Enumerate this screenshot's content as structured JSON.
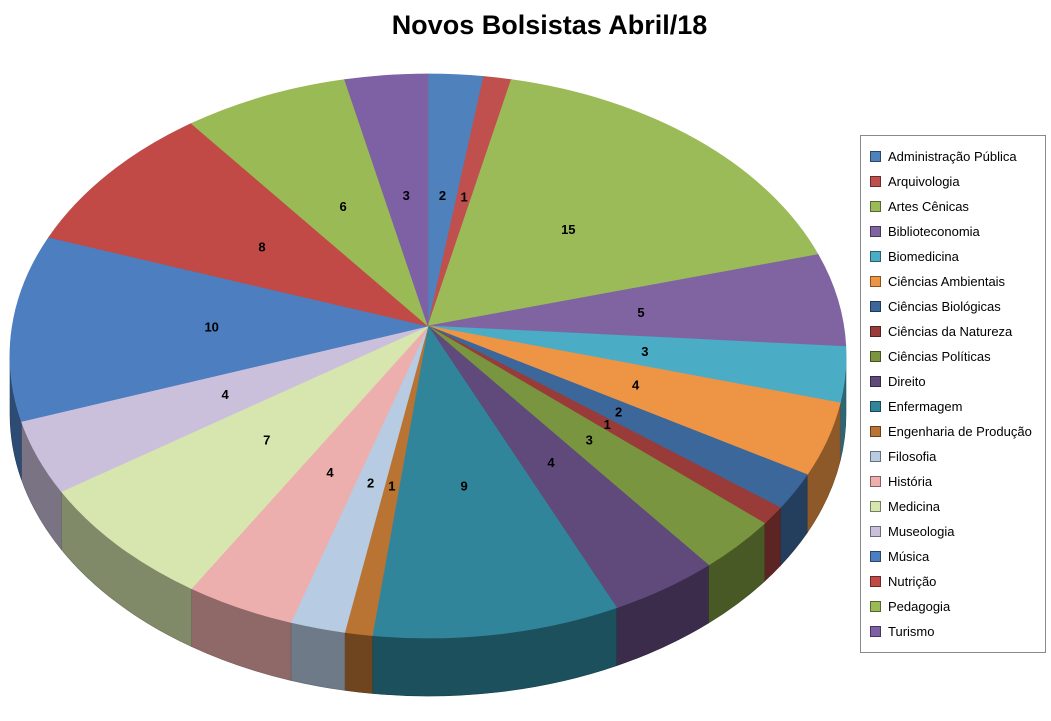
{
  "chart_data": {
    "type": "pie",
    "style": "3d",
    "title": "Novos Bolsistas Abril/18",
    "legend_position": "right",
    "direction": "clockwise",
    "start_angle_deg": 0,
    "total": 94,
    "data_labels": "values",
    "slices": [
      {
        "label": "Administração Pública",
        "value": 2,
        "color": "#4F81BD"
      },
      {
        "label": "Arquivologia",
        "value": 1,
        "color": "#C0504D"
      },
      {
        "label": "Artes Cênicas",
        "value": 15,
        "color": "#9BBB59"
      },
      {
        "label": "Biblioteconomia",
        "value": 5,
        "color": "#8064A2"
      },
      {
        "label": "Biomedicina",
        "value": 3,
        "color": "#4BACC6"
      },
      {
        "label": "Ciências Ambientais",
        "value": 4,
        "color": "#ED9445"
      },
      {
        "label": "Ciências Biológicas",
        "value": 2,
        "color": "#3C679B"
      },
      {
        "label": "Ciências da Natureza",
        "value": 1,
        "color": "#993C39"
      },
      {
        "label": "Ciências Políticas",
        "value": 3,
        "color": "#79953F"
      },
      {
        "label": "Direito",
        "value": 4,
        "color": "#604A7B"
      },
      {
        "label": "Enfermagem",
        "value": 9,
        "color": "#31859B"
      },
      {
        "label": "Engenharia de Produção",
        "value": 1,
        "color": "#B97333"
      },
      {
        "label": "Filosofia",
        "value": 2,
        "color": "#B7CBE2"
      },
      {
        "label": "História",
        "value": 4,
        "color": "#EDAFAE"
      },
      {
        "label": "Medicina",
        "value": 7,
        "color": "#D6E6AE"
      },
      {
        "label": "Museologia",
        "value": 4,
        "color": "#CBC0DC"
      },
      {
        "label": "Música",
        "value": 10,
        "color": "#4C7EC0"
      },
      {
        "label": "Nutrição",
        "value": 8,
        "color": "#C14A47"
      },
      {
        "label": "Pedagogia",
        "value": 6,
        "color": "#99BA55"
      },
      {
        "label": "Turismo",
        "value": 3,
        "color": "#7E61A5"
      }
    ]
  }
}
